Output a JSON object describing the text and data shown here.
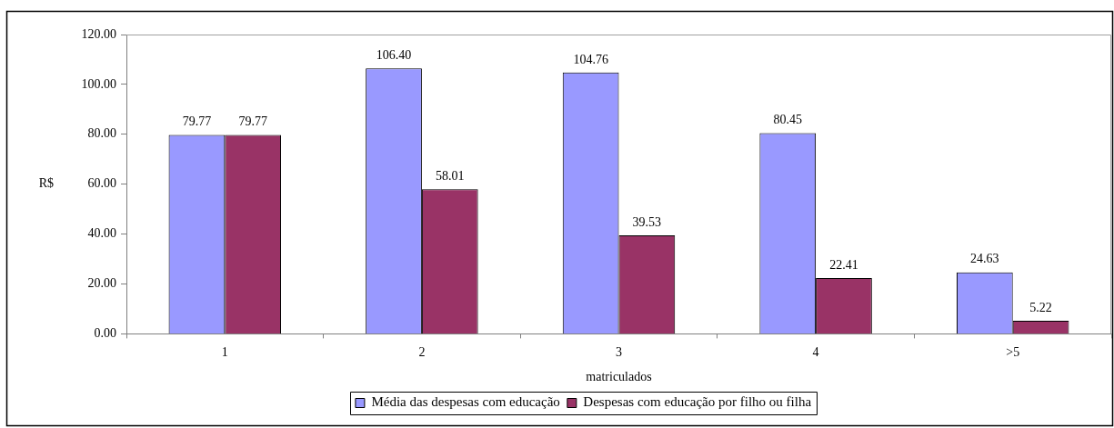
{
  "chart_data": {
    "type": "bar",
    "xlabel": "matriculados",
    "ylabel": "R$",
    "categories": [
      "1",
      "2",
      "3",
      "4",
      ">5"
    ],
    "series": [
      {
        "name": "Média das despesas com educação",
        "color": "#9999ff",
        "values": [
          79.77,
          106.4,
          104.76,
          80.45,
          24.63
        ],
        "value_labels": [
          "79.77",
          "106.40",
          "104.76",
          "80.45",
          "24.63"
        ]
      },
      {
        "name": "Despesas com educação por filho ou filha",
        "color": "#993366",
        "values": [
          79.77,
          58.01,
          39.53,
          22.41,
          5.22
        ],
        "value_labels": [
          "79.77",
          "58.01",
          "39.53",
          "22.41",
          "5.22"
        ]
      }
    ],
    "ylim": [
      0,
      120
    ],
    "yticks": [
      {
        "value": 0,
        "label": "0.00"
      },
      {
        "value": 20,
        "label": "20.00"
      },
      {
        "value": 40,
        "label": "40.00"
      },
      {
        "value": 60,
        "label": "60.00"
      },
      {
        "value": 80,
        "label": "80.00"
      },
      {
        "value": 100,
        "label": "100.00"
      },
      {
        "value": 120,
        "label": "120.00"
      }
    ],
    "legend": "bottom"
  }
}
